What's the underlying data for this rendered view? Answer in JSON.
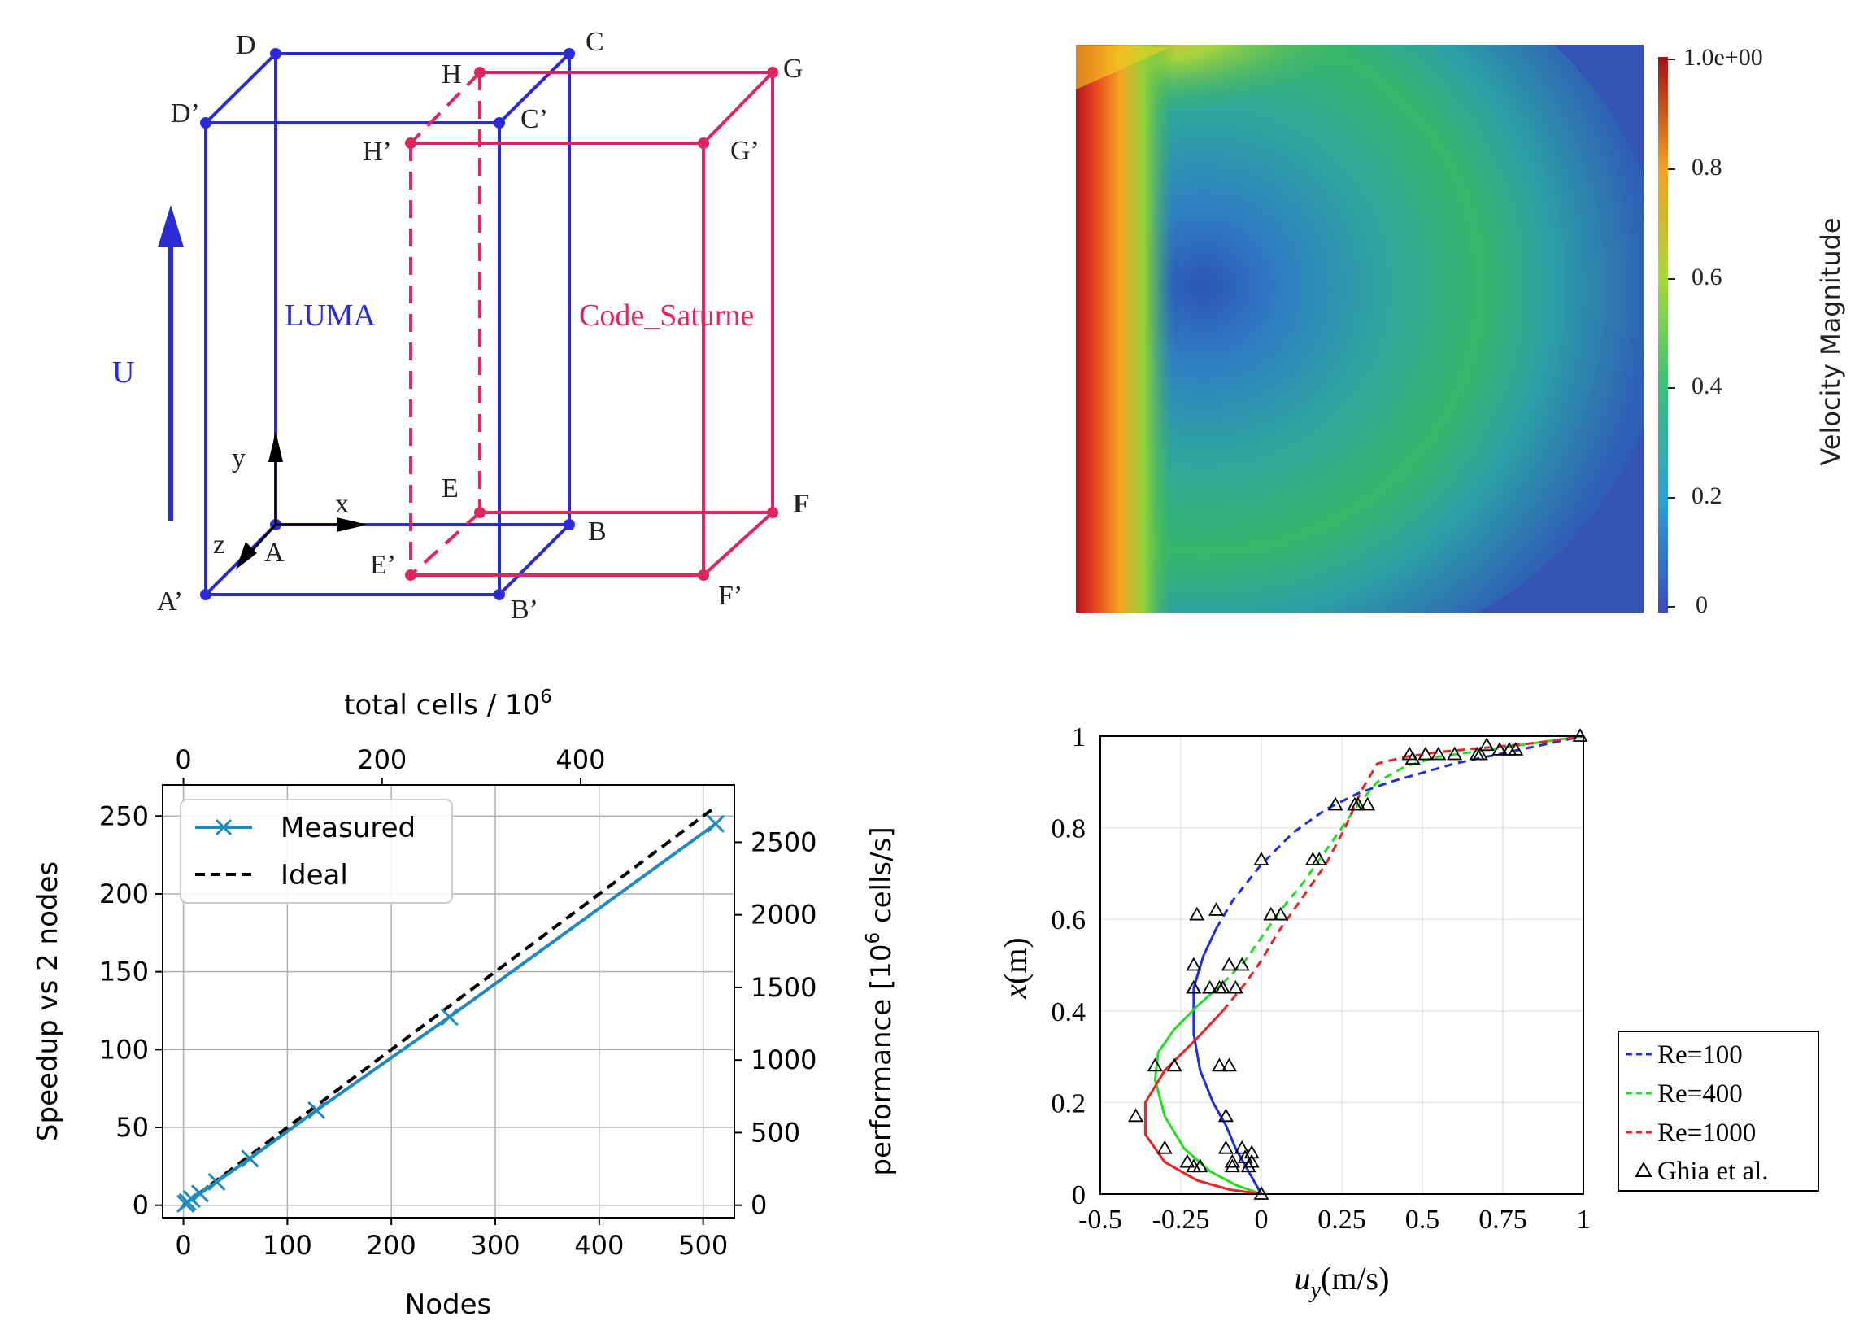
{
  "domain_panels": [
    "domain-diagram",
    "velocity-contour",
    "scaling-chart",
    "validation-chart"
  ],
  "diagram": {
    "luma_label": "LUMA",
    "cs_label": "Code_Saturne",
    "u_label": "U",
    "x_axis": "x",
    "y_axis": "y",
    "z_axis": "z",
    "colors": {
      "luma": "#2b2bd6",
      "cs": "#e0245e",
      "axis": "#000000"
    },
    "points": {
      "A": "A",
      "B": "B",
      "C": "C",
      "D": "D",
      "A2": "A’",
      "B2": "B’",
      "C2": "C’",
      "D2": "D’",
      "E": "E",
      "F": "F",
      "G": "G",
      "H": "H",
      "E2": "E’",
      "F2": "F’",
      "G2": "G’",
      "H2": "H’"
    }
  },
  "contour": {
    "colorbar_title": "Velocity Magnitude",
    "ticks": [
      "1.0e+00",
      "0.8",
      "0.6",
      "0.4",
      "0.2",
      "0"
    ]
  },
  "chart_data": [
    {
      "type": "line",
      "xlabel": "Nodes",
      "ylabel": "Speedup vs 2 nodes",
      "top_xlabel": "total cells / 10",
      "top_xlabel_sup": "6",
      "right_ylabel_pre": "performance [10",
      "right_ylabel_sup": "6",
      "right_ylabel_post": " cells/s]",
      "xlim": [
        -20,
        530
      ],
      "ylim": [
        -8,
        270
      ],
      "xticks": [
        0,
        100,
        200,
        300,
        400,
        500
      ],
      "yticks": [
        0,
        50,
        100,
        150,
        200,
        250
      ],
      "top_ticks": [
        0,
        200,
        400
      ],
      "right_ticks": [
        0,
        500,
        1000,
        1500,
        2000,
        2500
      ],
      "grid": true,
      "legend": "top-left",
      "series": [
        {
          "name": "Measured",
          "color": "#1f8ac0",
          "marker": "x",
          "x": [
            2,
            4,
            8,
            16,
            32,
            64,
            128,
            256,
            512
          ],
          "y": [
            1,
            2,
            4,
            7.5,
            15,
            30,
            61,
            121,
            245
          ]
        },
        {
          "name": "Ideal",
          "color": "#000000",
          "dash": true,
          "x": [
            0,
            512
          ],
          "y": [
            0,
            256
          ]
        }
      ]
    },
    {
      "type": "line",
      "xlabel_main": "u",
      "xlabel_sub": "y",
      "xlabel_unit": "(m/s)",
      "ylabel_main": "x",
      "ylabel_unit": "(m)",
      "xlim": [
        -0.5,
        1
      ],
      "ylim": [
        0,
        1
      ],
      "xticks": [
        -0.5,
        -0.25,
        0,
        0.25,
        0.5,
        0.75,
        1
      ],
      "xtick_labels": [
        "-0.5",
        "-0.25",
        "0",
        "0.25",
        "0.5",
        "0.75",
        "1"
      ],
      "yticks": [
        0,
        0.2,
        0.4,
        0.6,
        0.8,
        1
      ],
      "ytick_labels": [
        "0",
        "0.2",
        "0.4",
        "0.6",
        "0.8",
        "1"
      ],
      "grid": true,
      "legend": "bottom-right",
      "series": [
        {
          "name": "Re=100",
          "color": "#1f2fe0",
          "x": [
            0,
            -0.04,
            -0.08,
            -0.11,
            -0.15,
            -0.19,
            -0.21,
            -0.21,
            -0.18,
            -0.14,
            -0.09,
            0.0,
            0.1,
            0.2,
            0.3,
            0.4,
            0.5,
            0.6,
            0.7,
            0.8,
            0.9,
            1.0
          ],
          "y": [
            0,
            0.05,
            0.1,
            0.15,
            0.2,
            0.27,
            0.35,
            0.45,
            0.52,
            0.58,
            0.64,
            0.72,
            0.79,
            0.84,
            0.875,
            0.9,
            0.92,
            0.94,
            0.955,
            0.97,
            0.985,
            1.0
          ]
        },
        {
          "name": "Re=400",
          "color": "#22dd22",
          "x": [
            0,
            -0.08,
            -0.16,
            -0.24,
            -0.3,
            -0.33,
            -0.32,
            -0.27,
            -0.2,
            -0.12,
            -0.05,
            0.0,
            0.06,
            0.13,
            0.19,
            0.25,
            0.3,
            0.36,
            0.45,
            0.55,
            0.65,
            0.75,
            0.85,
            1.0
          ],
          "y": [
            0,
            0.02,
            0.05,
            0.1,
            0.17,
            0.25,
            0.31,
            0.36,
            0.41,
            0.46,
            0.51,
            0.56,
            0.62,
            0.68,
            0.74,
            0.8,
            0.85,
            0.9,
            0.935,
            0.955,
            0.965,
            0.975,
            0.985,
            1.0
          ]
        },
        {
          "name": "Re=1000",
          "color": "#ee2222",
          "x": [
            0,
            -0.1,
            -0.2,
            -0.3,
            -0.36,
            -0.36,
            -0.3,
            -0.2,
            -0.12,
            -0.05,
            0.0,
            0.05,
            0.12,
            0.2,
            0.26,
            0.31,
            0.36,
            0.45,
            0.55,
            0.65,
            0.75,
            0.85,
            1.0
          ],
          "y": [
            0,
            0.01,
            0.03,
            0.07,
            0.13,
            0.2,
            0.27,
            0.34,
            0.4,
            0.46,
            0.51,
            0.57,
            0.64,
            0.72,
            0.8,
            0.88,
            0.94,
            0.955,
            0.965,
            0.972,
            0.978,
            0.985,
            1.0
          ]
        },
        {
          "name": "Ghia et al.",
          "marker": "triangle",
          "color": "#000000",
          "x": [
            0,
            -0.04,
            -0.03,
            -0.05,
            -0.03,
            -0.06,
            -0.11,
            -0.1,
            -0.16,
            -0.21,
            -0.21,
            -0.2,
            -0.14,
            0.0,
            0.23,
            0.99,
            0.47,
            0.67,
            0.74,
            0.7,
            0.55,
            -0.09,
            -0.09,
            -0.11,
            -0.13,
            -0.21,
            -0.27,
            -0.33,
            -0.13,
            -0.1,
            -0.08,
            0.03,
            0.16,
            0.29,
            0.3,
            0.51,
            0.6,
            0.77,
            -0.19,
            -0.21,
            -0.23,
            -0.3,
            -0.39,
            -0.12,
            -0.06,
            0.06,
            0.18,
            0.33,
            0.46,
            0.68,
            0.79
          ],
          "y": [
            0,
            0.06,
            0.07,
            0.08,
            0.09,
            0.1,
            0.17,
            0.28,
            0.45,
            0.5,
            0.45,
            0.61,
            0.62,
            0.73,
            0.85,
            1.0,
            0.95,
            0.96,
            0.97,
            0.98,
            0.96,
            0.06,
            0.07,
            0.1,
            0.28,
            0.45,
            0.28,
            0.28,
            0.45,
            0.5,
            0.45,
            0.61,
            0.73,
            0.85,
            0.85,
            0.96,
            0.96,
            0.97,
            0.06,
            0.06,
            0.07,
            0.1,
            0.17,
            0.45,
            0.5,
            0.61,
            0.73,
            0.85,
            0.96,
            0.96,
            0.97
          ]
        }
      ]
    }
  ]
}
